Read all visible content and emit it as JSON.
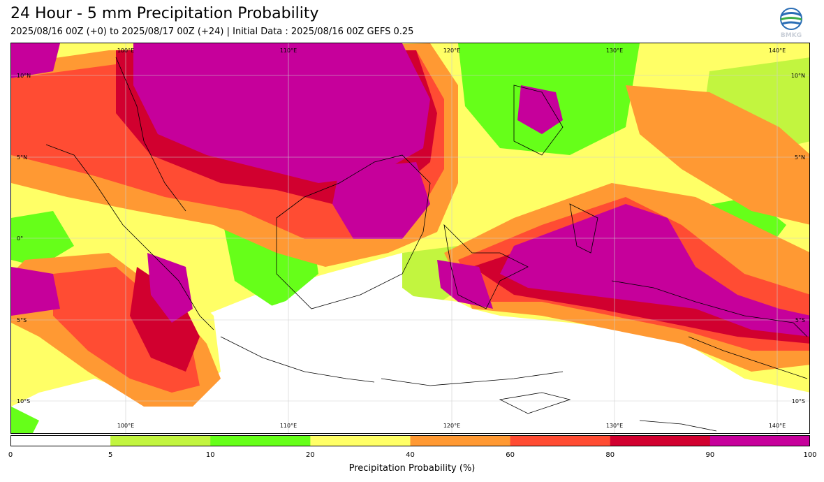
{
  "title": "24 Hour - 5 mm Precipitation Probability",
  "subtitle": "2025/08/16 00Z (+0) to 2025/08/17 00Z (+24) | Initial Data : 2025/08/16 00Z GEFS 0.25",
  "logo": {
    "text": "BMKG",
    "icon": "bmkg-logo"
  },
  "map": {
    "lon_labels": [
      "100°E",
      "110°E",
      "120°E",
      "130°E",
      "140°E"
    ],
    "lat_labels": [
      "10°N",
      "5°N",
      "0°",
      "5°S",
      "10°S"
    ]
  },
  "colorbar": {
    "label": "Precipitation Probability (%)",
    "ticks": [
      "0",
      "5",
      "10",
      "20",
      "40",
      "60",
      "80",
      "90",
      "100"
    ],
    "bins": [
      {
        "from": 0,
        "to": 5,
        "color": "#ffffff"
      },
      {
        "from": 5,
        "to": 10,
        "color": "#c2f53f"
      },
      {
        "from": 10,
        "to": 20,
        "color": "#66ff19"
      },
      {
        "from": 20,
        "to": 40,
        "color": "#ffff66"
      },
      {
        "from": 40,
        "to": 60,
        "color": "#ff9933"
      },
      {
        "from": 60,
        "to": 80,
        "color": "#ff4c33"
      },
      {
        "from": 80,
        "to": 90,
        "color": "#d1002f"
      },
      {
        "from": 90,
        "to": 100,
        "color": "#c6009b"
      }
    ]
  }
}
